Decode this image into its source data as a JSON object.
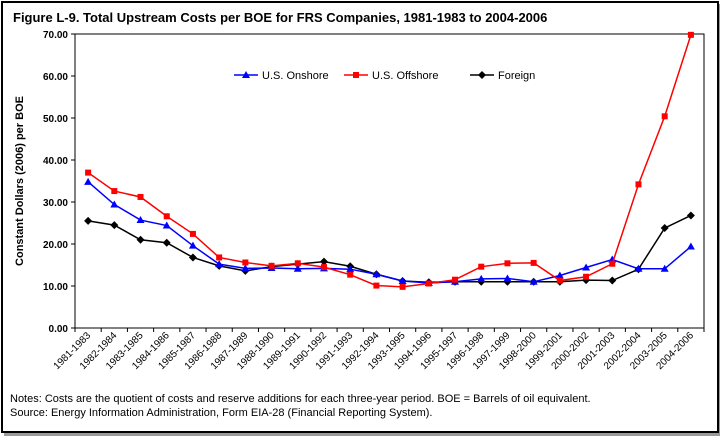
{
  "title": "Figure L-9.  Total Upstream Costs per BOE for FRS Companies, 1981-1983 to 2004-2006",
  "notes": {
    "line1": "Notes:  Costs are the quotient of costs and reserve additions for each three-year period.  BOE = Barrels of oil equivalent.",
    "line2": "Source:  Energy Information Administration, Form EIA-28 (Financial Reporting System)."
  },
  "chart_data": {
    "type": "line",
    "title": "Total Upstream Costs per BOE for FRS Companies, 1981-1983 to 2004-2006",
    "ylabel": "Constant Dollars (2006) per BOE",
    "xlabel": "",
    "ylim": [
      0,
      70
    ],
    "yticks": [
      "0.00",
      "10.00",
      "20.00",
      "30.00",
      "40.00",
      "50.00",
      "60.00",
      "70.00"
    ],
    "grid": false,
    "legend_position": "top-center",
    "categories": [
      "1981-1983",
      "1982-1984",
      "1983-1985",
      "1984-1986",
      "1985-1987",
      "1986-1988",
      "1987-1989",
      "1988-1990",
      "1989-1991",
      "1990-1992",
      "1991-1993",
      "1992-1994",
      "1993-1995",
      "1994-1996",
      "1995-1997",
      "1996-1998",
      "1997-1999",
      "1998-2000",
      "1999-2001",
      "2000-2002",
      "2001-2003",
      "2002-2004",
      "2003-2005",
      "2004-2006"
    ],
    "series": [
      {
        "name": "U.S. Onshore",
        "color": "#0000ff",
        "marker": "triangle",
        "values": [
          34.8,
          29.4,
          25.7,
          24.4,
          19.6,
          15.2,
          14.2,
          14.3,
          14.1,
          14.2,
          14.0,
          12.8,
          11.2,
          10.7,
          11.0,
          11.7,
          11.8,
          11.0,
          12.5,
          14.4,
          16.3,
          14.1,
          14.1,
          19.4
        ]
      },
      {
        "name": "U.S. Offshore",
        "color": "#ff0000",
        "marker": "square",
        "values": [
          37.0,
          32.6,
          31.2,
          26.6,
          22.4,
          16.8,
          15.6,
          14.8,
          15.4,
          14.5,
          12.7,
          10.1,
          9.8,
          10.6,
          11.5,
          14.6,
          15.4,
          15.5,
          11.3,
          12.2,
          15.3,
          34.2,
          50.4,
          69.8
        ]
      },
      {
        "name": "Foreign",
        "color": "#000000",
        "marker": "diamond",
        "values": [
          25.5,
          24.5,
          21.0,
          20.3,
          16.8,
          14.8,
          13.6,
          14.6,
          15.2,
          15.8,
          14.7,
          12.8,
          11.2,
          10.9,
          11.0,
          11.0,
          11.0,
          11.0,
          11.0,
          11.4,
          11.3,
          14.0,
          23.8,
          26.8
        ]
      }
    ]
  }
}
